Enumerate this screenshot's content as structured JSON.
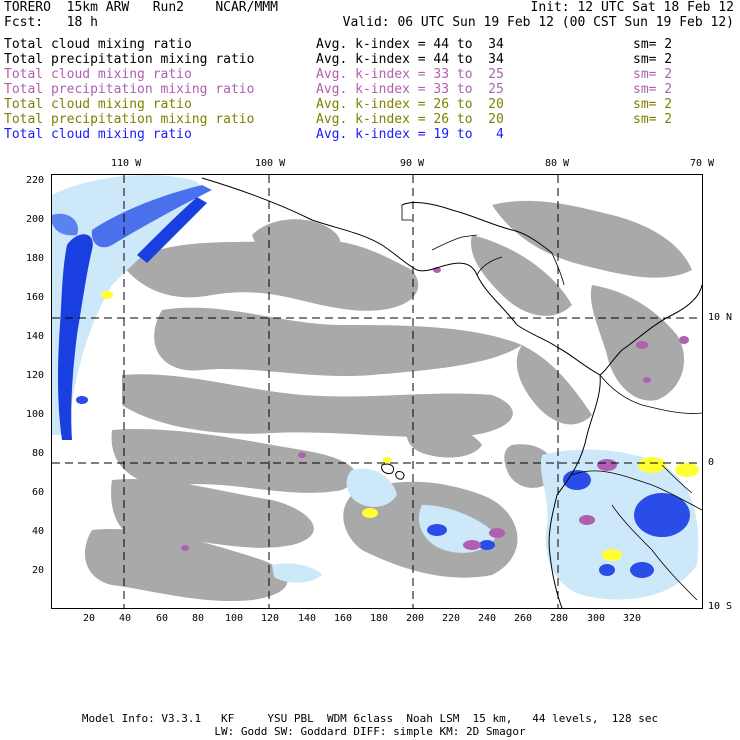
{
  "header": {
    "model": "TORERO  15km ARW   Run2    NCAR/MMM",
    "init": "Init: 12 UTC Sat 18 Feb 12",
    "fcst": "Fcst:   18 h",
    "valid": "Valid: 06 UTC Sun 19 Feb 12 (00 CST Sun 19 Feb 12)"
  },
  "legend": [
    {
      "label": "Total cloud mixing ratio",
      "kindex": "Avg. k-index = 44 to  34",
      "sm": "sm= 2",
      "color": "#000000"
    },
    {
      "label": "Total precipitation mixing ratio",
      "kindex": "Avg. k-index = 44 to  34",
      "sm": "sm= 2",
      "color": "#000000"
    },
    {
      "label": "Total cloud mixing ratio",
      "kindex": "Avg. k-index = 33 to  25",
      "sm": "sm= 2",
      "color": "#b060b0"
    },
    {
      "label": "Total precipitation mixing ratio",
      "kindex": "Avg. k-index = 33 to  25",
      "sm": "sm= 2",
      "color": "#b060b0"
    },
    {
      "label": "Total cloud mixing ratio",
      "kindex": "Avg. k-index = 26 to  20",
      "sm": "sm= 2",
      "color": "#808000"
    },
    {
      "label": "Total precipitation mixing ratio",
      "kindex": "Avg. k-index = 26 to  20",
      "sm": "sm= 2",
      "color": "#808000"
    },
    {
      "label": "Total cloud mixing ratio",
      "kindex": "Avg. k-index = 19 to   4",
      "sm": "",
      "color": "#1a1aff"
    }
  ],
  "axes": {
    "lon_labels": [
      "110 W",
      "100 W",
      "90 W",
      "80 W",
      "70 W"
    ],
    "lat_labels": [
      "10 N",
      "0",
      "10 S"
    ],
    "x_ticks": [
      "20",
      "40",
      "60",
      "80",
      "100",
      "120",
      "140",
      "160",
      "180",
      "200",
      "220",
      "240",
      "260",
      "280",
      "300",
      "320"
    ],
    "y_ticks": [
      "220",
      "200",
      "180",
      "160",
      "140",
      "120",
      "100",
      "80",
      "60",
      "40",
      "20"
    ]
  },
  "colors": {
    "cloud_gray": "#a9a9a9",
    "cloud_light_blue": "#cde8f8",
    "cloud_blue": "#1a3fe0",
    "cloud_dark_blue": "#0a1fd0",
    "yellow": "#ffff33",
    "purple": "#b060b0"
  },
  "footer": {
    "line1": "Model Info: V3.3.1   KF     YSU PBL  WDM 6class  Noah LSM  15 km,   44 levels,  128 sec",
    "line2": "LW: Godd SW: Goddard DIFF: simple KM: 2D Smagor"
  }
}
